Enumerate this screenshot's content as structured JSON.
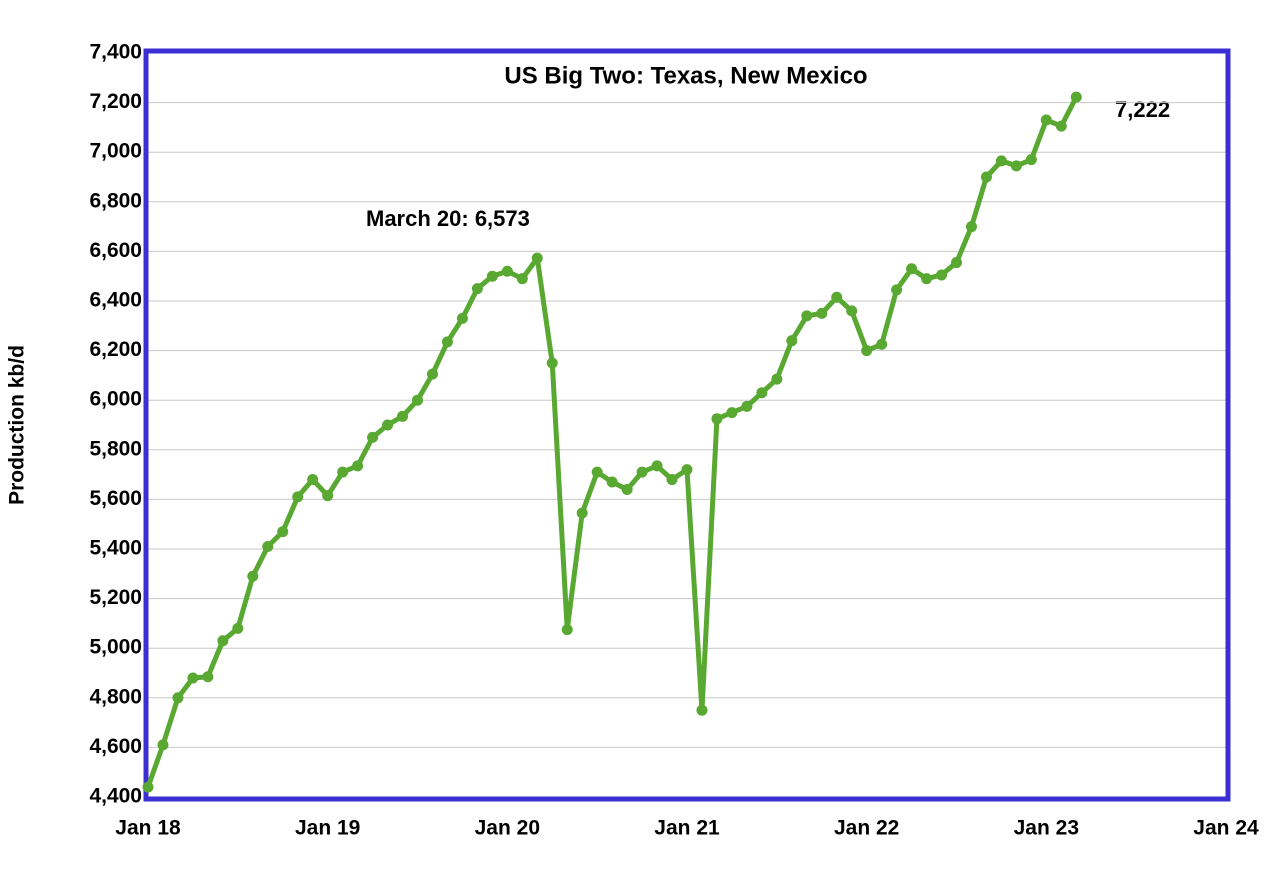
{
  "chart_data": {
    "type": "line",
    "title": "US Big Two: Texas, New Mexico",
    "y_label": "Production kb/d",
    "annotations": [
      "March 20: 6,573",
      "7,222"
    ],
    "categories": [
      "Jan 18",
      null,
      null,
      null,
      null,
      null,
      null,
      null,
      null,
      null,
      null,
      null,
      "Jan 19",
      null,
      null,
      null,
      null,
      null,
      null,
      null,
      null,
      null,
      null,
      null,
      "Jan 20",
      null,
      null,
      null,
      null,
      null,
      null,
      null,
      null,
      null,
      null,
      null,
      "Jan 21",
      null,
      null,
      null,
      null,
      null,
      null,
      null,
      null,
      null,
      null,
      null,
      "Jan 22",
      null,
      null,
      null,
      null,
      null,
      null,
      null,
      null,
      null,
      null,
      null,
      "Jan 23",
      null,
      null,
      null,
      null,
      null,
      null,
      null,
      null,
      null,
      null,
      null,
      "Jan 24"
    ],
    "series": [
      {
        "name": "Production",
        "color": "#58a832",
        "values": [
          4440,
          4610,
          4800,
          4880,
          4885,
          5030,
          5080,
          5290,
          5410,
          5470,
          5610,
          5680,
          5615,
          5710,
          5735,
          5850,
          5900,
          5935,
          6000,
          6105,
          6235,
          6330,
          6450,
          6500,
          6520,
          6490,
          6573,
          6150,
          5075,
          5545,
          5710,
          5670,
          5640,
          5710,
          5735,
          5680,
          5720,
          4750,
          5925,
          5950,
          5975,
          6030,
          6085,
          6240,
          6340,
          6350,
          6415,
          6360,
          6200,
          6225,
          6445,
          6530,
          6490,
          6505,
          6555,
          6700,
          6900,
          6965,
          6945,
          6970,
          7130,
          7105,
          7222,
          null,
          null,
          null,
          null,
          null,
          null,
          null,
          null,
          null,
          null
        ]
      }
    ],
    "ylim": [
      4400,
      7400
    ],
    "yticks": [
      {
        "value": 4400,
        "label": "4,400"
      },
      {
        "value": 4600,
        "label": "4,600"
      },
      {
        "value": 4800,
        "label": "4,800"
      },
      {
        "value": 5000,
        "label": "5,000"
      },
      {
        "value": 5200,
        "label": "5,200"
      },
      {
        "value": 5400,
        "label": "5,400"
      },
      {
        "value": 5600,
        "label": "5,600"
      },
      {
        "value": 5800,
        "label": "5,800"
      },
      {
        "value": 6000,
        "label": "6,000"
      },
      {
        "value": 6200,
        "label": "6,200"
      },
      {
        "value": 6400,
        "label": "6,400"
      },
      {
        "value": 6600,
        "label": "6,600"
      },
      {
        "value": 6800,
        "label": "6,800"
      },
      {
        "value": 7000,
        "label": "7,000"
      },
      {
        "value": 7200,
        "label": "7,200"
      },
      {
        "value": 7400,
        "label": "7,400"
      }
    ],
    "grid": true,
    "frame_color": "#3b2fd4"
  }
}
